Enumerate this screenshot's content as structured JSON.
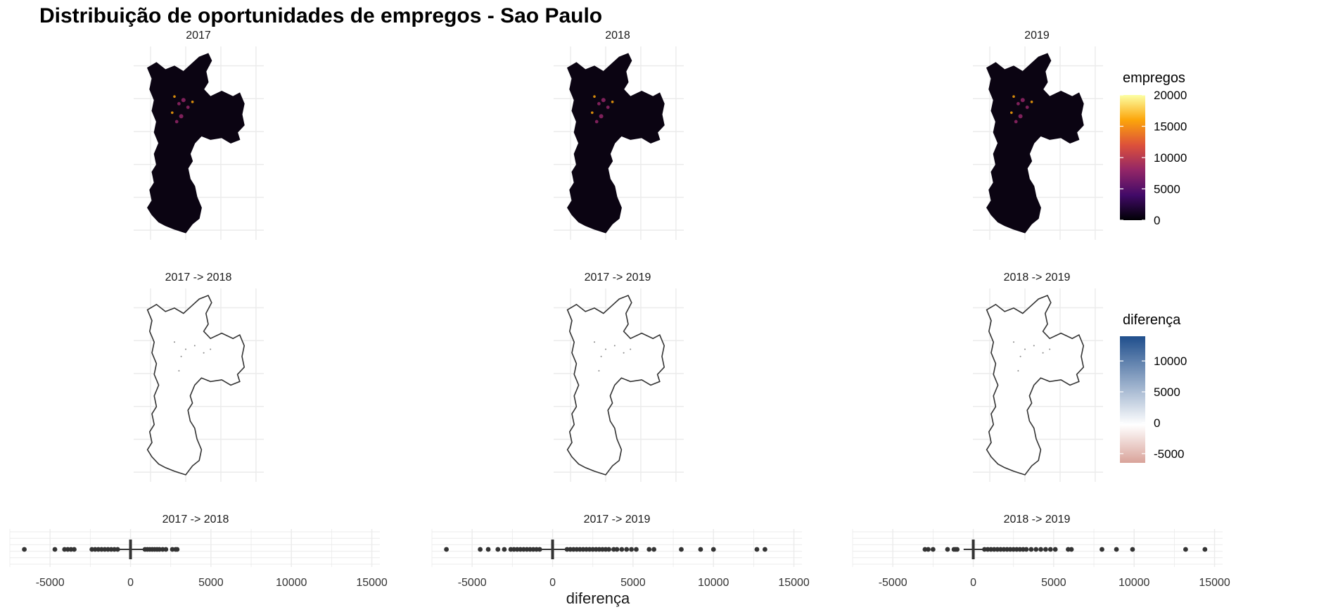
{
  "title": "Distribuição de oportunidades de empregos - Sao Paulo",
  "colors": {
    "grid": "#ebebeb",
    "map_fill": "#0b0412",
    "outline": "#333333",
    "points": "#333333",
    "inferno": [
      "#000004",
      "#420a68",
      "#932667",
      "#dd513a",
      "#fca50a",
      "#fcffa4"
    ],
    "diff_neg": "#d9a39a",
    "diff_mid": "#ffffff",
    "diff_pos": "#1f4e8c"
  },
  "chart_data": [
    {
      "type": "heatmap",
      "panel": "map-emprego",
      "facets": [
        "2017",
        "2018",
        "2019"
      ],
      "legend": {
        "title": "empregos",
        "ticks": [
          "0",
          "5000",
          "10000",
          "15000",
          "20000"
        ],
        "range": [
          0,
          20000
        ]
      }
    },
    {
      "type": "heatmap",
      "panel": "map-diferenca",
      "facets": [
        "2017 -> 2018",
        "2017 -> 2019",
        "2018 -> 2019"
      ],
      "legend": {
        "title": "diferença",
        "ticks": [
          "-5000",
          "0",
          "5000",
          "10000"
        ],
        "range": [
          -6500,
          14000
        ]
      }
    },
    {
      "type": "scatter",
      "panel": "boxplot-diferenca",
      "xlabel": "diferença",
      "xlim": [
        -7500,
        15500
      ],
      "xticks": [
        "-5000",
        "0",
        "5000",
        "10000",
        "15000"
      ],
      "series": [
        {
          "facet": "2017 -> 2018",
          "outliers": [
            -6600,
            -4700,
            -4100,
            -3900,
            -3700,
            -3500,
            -2400,
            -2200,
            -2000,
            -1800,
            -1600,
            -1400,
            -1200,
            -1000,
            -800,
            900,
            1050,
            1200,
            1350,
            1500,
            1650,
            1800,
            2000,
            2200,
            2600,
            2800,
            2900
          ],
          "whisker": [
            -700,
            800
          ]
        },
        {
          "facet": "2017 -> 2019",
          "outliers": [
            -6600,
            -4500,
            -4000,
            -3400,
            -3000,
            -2600,
            -2400,
            -2200,
            -2000,
            -1800,
            -1600,
            -1400,
            -1200,
            -1000,
            -800,
            900,
            1100,
            1300,
            1500,
            1700,
            1900,
            2100,
            2300,
            2500,
            2700,
            2900,
            3100,
            3300,
            3500,
            3800,
            4000,
            4300,
            4600,
            4900,
            5200,
            6000,
            6300,
            8000,
            9200,
            10000,
            12700,
            13200
          ],
          "whisker": [
            -700,
            800
          ]
        },
        {
          "facet": "2018 -> 2019",
          "outliers": [
            -3000,
            -2800,
            -2500,
            -1600,
            -1200,
            -1100,
            -1000,
            700,
            900,
            1100,
            1300,
            1500,
            1700,
            1900,
            2100,
            2300,
            2500,
            2700,
            2900,
            3100,
            3300,
            3600,
            3900,
            4200,
            4500,
            4800,
            5100,
            5900,
            6100,
            8000,
            8900,
            9900,
            13200,
            14400
          ],
          "whisker": [
            -600,
            600
          ]
        }
      ]
    }
  ]
}
